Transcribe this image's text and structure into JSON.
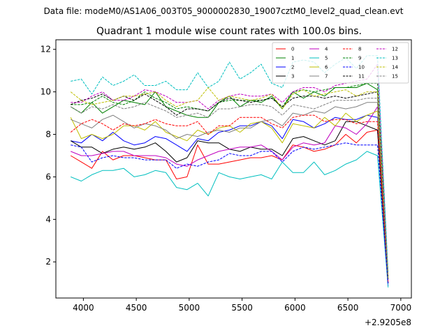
{
  "chart_data": {
    "type": "line",
    "suptitle": "Data file: modeM0/AS1A06_003T05_9000002830_19007cztM0_level2_quad_clean.evt",
    "title": "Quadrant 1 module wise count rates with 100.0s bins.",
    "xlabel": "",
    "ylabel": "",
    "x_offset_label": "+2.9205e8",
    "xlim": [
      3740,
      7100
    ],
    "ylim": [
      0.3,
      12.45
    ],
    "xticks": [
      4000,
      4500,
      5000,
      5500,
      6000,
      6500,
      7000
    ],
    "yticks": [
      2,
      4,
      6,
      8,
      10,
      12
    ],
    "legend_loc": "upper right",
    "x": [
      3880,
      3980,
      4080,
      4180,
      4280,
      4380,
      4480,
      4580,
      4680,
      4780,
      4880,
      4980,
      5080,
      5180,
      5280,
      5380,
      5480,
      5580,
      5680,
      5780,
      5880,
      5980,
      6080,
      6180,
      6280,
      6380,
      6480,
      6580,
      6680,
      6780,
      6880
    ],
    "series": [
      {
        "name": "0",
        "color": "#ff0000",
        "dash": false,
        "values": [
          7.0,
          6.7,
          6.4,
          7.2,
          6.8,
          7.0,
          7.0,
          6.9,
          6.8,
          6.8,
          5.9,
          6.0,
          7.5,
          6.6,
          6.6,
          6.7,
          6.8,
          6.9,
          6.9,
          7.0,
          6.8,
          7.5,
          7.4,
          7.2,
          7.3,
          7.5,
          8.0,
          7.6,
          8.1,
          8.2,
          1.0
        ]
      },
      {
        "name": "1",
        "color": "#008000",
        "dash": false,
        "values": [
          9.3,
          9.0,
          9.5,
          9.0,
          9.3,
          9.6,
          9.5,
          9.4,
          10.0,
          9.3,
          9.1,
          8.9,
          8.8,
          8.8,
          9.5,
          9.8,
          9.3,
          9.6,
          9.5,
          9.8,
          9.2,
          10.0,
          9.7,
          10.0,
          9.8,
          10.2,
          10.2,
          10.2,
          10.4,
          10.1,
          1.2
        ]
      },
      {
        "name": "2",
        "color": "#0000ff",
        "dash": false,
        "values": [
          7.7,
          7.6,
          8.0,
          7.7,
          8.1,
          7.7,
          7.5,
          7.6,
          7.9,
          7.8,
          7.5,
          7.2,
          7.8,
          7.7,
          8.1,
          8.2,
          8.4,
          8.4,
          8.6,
          8.4,
          7.8,
          8.7,
          8.6,
          8.3,
          8.5,
          8.8,
          8.7,
          8.7,
          8.9,
          8.8,
          1.0
        ]
      },
      {
        "name": "3",
        "color": "#000000",
        "dash": false,
        "values": [
          7.7,
          7.4,
          7.4,
          7.1,
          7.3,
          7.4,
          7.3,
          7.4,
          7.6,
          7.2,
          6.7,
          6.9,
          7.7,
          7.6,
          7.6,
          7.3,
          7.2,
          7.4,
          7.3,
          7.3,
          7.0,
          7.8,
          7.9,
          7.7,
          7.5,
          7.7,
          8.6,
          8.6,
          8.4,
          8.2,
          1.0
        ]
      },
      {
        "name": "4",
        "color": "#bf00bf",
        "dash": false,
        "values": [
          7.2,
          7.0,
          7.0,
          7.1,
          7.2,
          7.2,
          7.0,
          7.0,
          7.0,
          6.9,
          6.6,
          6.5,
          6.8,
          7.0,
          7.2,
          7.3,
          7.4,
          7.4,
          7.5,
          7.2,
          6.8,
          7.4,
          7.6,
          7.5,
          7.6,
          8.4,
          8.3,
          8.0,
          8.5,
          9.3,
          1.1
        ]
      },
      {
        "name": "5",
        "color": "#00bfbf",
        "dash": false,
        "values": [
          6.0,
          5.8,
          6.1,
          6.3,
          6.3,
          6.4,
          6.0,
          6.1,
          6.3,
          6.2,
          5.5,
          5.4,
          5.7,
          5.1,
          6.2,
          6.0,
          5.9,
          6.0,
          6.1,
          5.9,
          6.7,
          6.2,
          6.2,
          6.7,
          6.1,
          6.3,
          6.6,
          6.8,
          7.2,
          7.0,
          0.8
        ]
      },
      {
        "name": "6",
        "color": "#bfbf00",
        "dash": false,
        "values": [
          8.8,
          7.8,
          8.0,
          7.8,
          8.0,
          8.4,
          8.4,
          8.2,
          8.6,
          8.1,
          7.9,
          7.7,
          8.2,
          8.0,
          8.3,
          8.4,
          8.1,
          8.5,
          8.6,
          8.3,
          7.6,
          8.5,
          8.4,
          8.3,
          8.8,
          8.4,
          9.0,
          8.6,
          8.9,
          9.1,
          1.2
        ]
      },
      {
        "name": "7",
        "color": "#808080",
        "dash": false,
        "values": [
          8.7,
          8.5,
          8.3,
          8.7,
          8.9,
          8.6,
          8.3,
          8.5,
          8.4,
          8.2,
          7.8,
          8.0,
          7.9,
          8.1,
          8.2,
          8.1,
          8.3,
          8.3,
          8.6,
          8.7,
          8.4,
          9.0,
          8.9,
          9.1,
          9.0,
          9.3,
          9.2,
          9.3,
          9.5,
          9.5,
          1.3
        ]
      },
      {
        "name": "8",
        "color": "#ff0000",
        "dash": true,
        "values": [
          8.1,
          8.5,
          8.7,
          8.5,
          8.2,
          8.5,
          8.4,
          8.5,
          8.7,
          8.5,
          8.4,
          8.4,
          8.6,
          8.0,
          8.4,
          8.4,
          8.8,
          8.8,
          8.8,
          8.5,
          8.3,
          8.8,
          8.9,
          8.9,
          8.6,
          8.7,
          8.7,
          8.5,
          8.6,
          8.6,
          1.0
        ]
      },
      {
        "name": "9",
        "color": "#008000",
        "dash": true,
        "values": [
          9.4,
          9.4,
          9.5,
          9.8,
          9.5,
          9.4,
          9.6,
          10.0,
          9.7,
          9.5,
          9.2,
          9.3,
          9.2,
          9.1,
          9.5,
          9.6,
          9.6,
          9.6,
          9.6,
          9.7,
          9.3,
          10.0,
          10.1,
          10.0,
          10.1,
          10.2,
          10.2,
          10.3,
          10.4,
          10.4,
          1.3
        ]
      },
      {
        "name": "10",
        "color": "#0000ff",
        "dash": true,
        "values": [
          7.5,
          7.4,
          6.7,
          6.9,
          7.0,
          6.9,
          6.9,
          6.8,
          6.8,
          6.8,
          6.4,
          6.6,
          6.5,
          6.7,
          6.8,
          7.1,
          7.0,
          7.0,
          7.2,
          7.2,
          6.7,
          7.2,
          7.4,
          7.3,
          7.4,
          7.5,
          7.6,
          7.5,
          7.5,
          7.5,
          0.9
        ]
      },
      {
        "name": "11",
        "color": "#000000",
        "dash": true,
        "values": [
          9.4,
          9.6,
          9.7,
          9.9,
          9.6,
          9.8,
          9.6,
          9.9,
          9.6,
          9.3,
          8.9,
          9.2,
          9.2,
          9.1,
          9.5,
          9.7,
          9.6,
          9.5,
          9.6,
          9.7,
          9.3,
          9.7,
          9.8,
          9.8,
          9.7,
          9.8,
          9.7,
          9.8,
          9.9,
          10.0,
          1.2
        ]
      },
      {
        "name": "12",
        "color": "#bf00bf",
        "dash": true,
        "values": [
          9.5,
          9.5,
          9.8,
          10.0,
          9.6,
          9.6,
          9.8,
          10.1,
          10.0,
          9.8,
          9.5,
          9.5,
          9.6,
          9.2,
          9.6,
          9.8,
          9.9,
          9.8,
          9.8,
          9.9,
          9.5,
          10.0,
          10.2,
          10.2,
          10.0,
          10.3,
          10.4,
          10.5,
          10.6,
          11.3,
          1.4
        ]
      },
      {
        "name": "13",
        "color": "#00bfbf",
        "dash": true,
        "values": [
          10.5,
          10.6,
          9.9,
          10.7,
          10.3,
          10.5,
          10.8,
          10.3,
          10.3,
          10.5,
          10.1,
          10.1,
          10.9,
          10.2,
          10.5,
          11.4,
          10.6,
          10.9,
          11.3,
          10.4,
          10.2,
          11.4,
          11.5,
          11.4,
          10.9,
          11.3,
          11.6,
          11.1,
          11.7,
          11.7,
          1.5
        ]
      },
      {
        "name": "14",
        "color": "#bfbf00",
        "dash": true,
        "values": [
          10.0,
          9.6,
          9.4,
          9.5,
          9.6,
          9.8,
          9.8,
          9.9,
          10.0,
          9.6,
          9.3,
          9.5,
          9.6,
          10.2,
          9.6,
          9.8,
          9.7,
          9.6,
          9.7,
          9.9,
          9.2,
          9.9,
          10.1,
          9.8,
          9.9,
          10.0,
          10.1,
          9.8,
          10.0,
          10.0,
          1.3
        ]
      },
      {
        "name": "15",
        "color": "#808080",
        "dash": true,
        "values": [
          9.3,
          9.0,
          9.3,
          9.2,
          9.4,
          9.2,
          9.3,
          9.5,
          9.3,
          9.1,
          8.8,
          8.9,
          9.0,
          8.8,
          9.2,
          9.2,
          9.3,
          9.4,
          9.4,
          9.3,
          8.9,
          9.4,
          9.3,
          9.2,
          9.4,
          9.6,
          9.6,
          9.6,
          9.7,
          9.7,
          1.2
        ]
      }
    ]
  }
}
